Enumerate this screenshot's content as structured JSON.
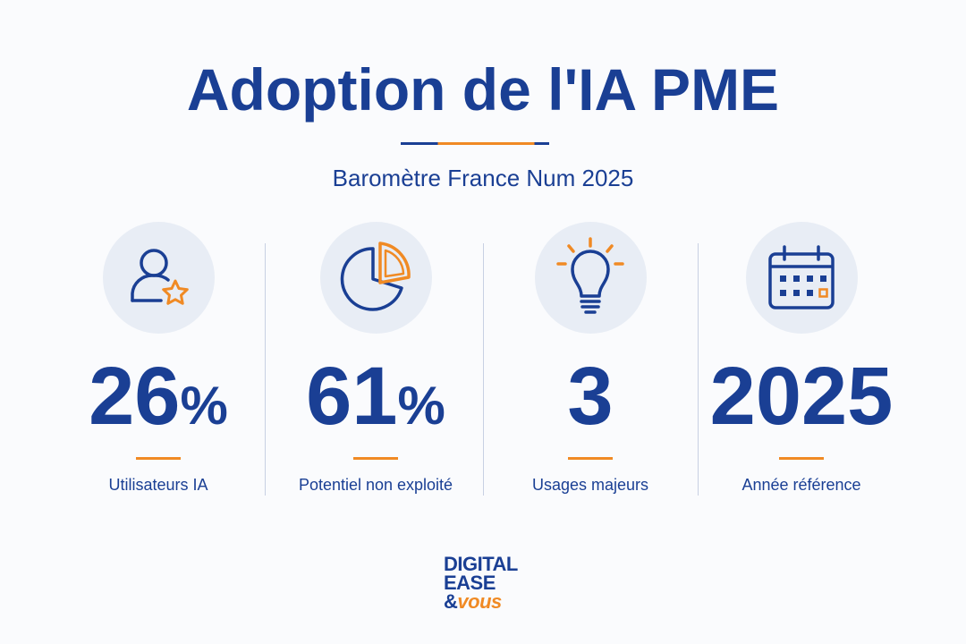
{
  "header": {
    "title": "Adoption de l'IA PME",
    "subtitle": "Baromètre France Num 2025"
  },
  "stats": [
    {
      "value": "26",
      "suffix": "%",
      "label": "Utilisateurs IA",
      "icon": "user-star-icon"
    },
    {
      "value": "61",
      "suffix": "%",
      "label": "Potentiel non exploité",
      "icon": "pie-chart-icon"
    },
    {
      "value": "3",
      "suffix": "",
      "label": "Usages majeurs",
      "icon": "lightbulb-icon"
    },
    {
      "value": "2025",
      "suffix": "",
      "label": "Année référence",
      "icon": "calendar-icon"
    }
  ],
  "logo": {
    "line1": "DIGITAL",
    "line2": "EASE",
    "amp": "&",
    "vous": "vous"
  },
  "colors": {
    "primary": "#1a3f94",
    "accent": "#f08a24",
    "icon_bg": "#e8edf5",
    "background": "#fafbfd"
  }
}
